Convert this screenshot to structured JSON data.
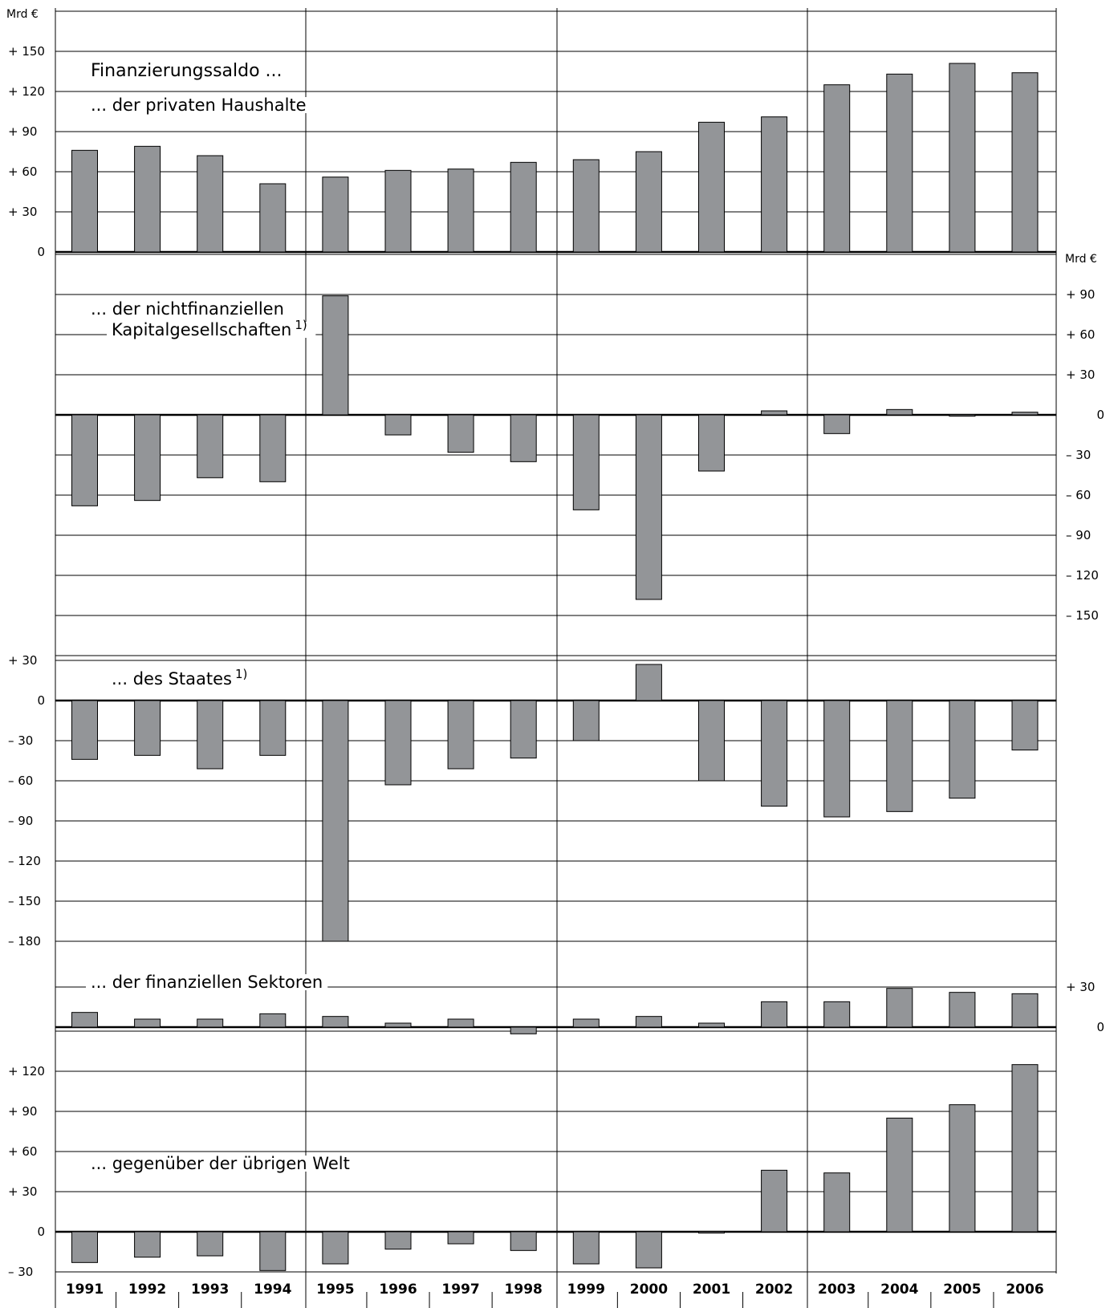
{
  "chart_data": {
    "type": "bar",
    "title": "Finanzierungssaldo ...",
    "categories": [
      "1991",
      "1992",
      "1993",
      "1994",
      "1995",
      "1996",
      "1997",
      "1998",
      "1999",
      "2000",
      "2001",
      "2002",
      "2003",
      "2004",
      "2005",
      "2006"
    ],
    "unit_left": "Mrd €",
    "unit_right": "Mrd €",
    "bar_color": "#939598",
    "grid": true,
    "panels": [
      {
        "id": "private",
        "label": "... der privaten Haushalte",
        "axis_side": "left",
        "ylim": [
          0,
          165
        ],
        "ticks": [
          {
            "value": 150,
            "label": "+ 150"
          },
          {
            "value": 120,
            "label": "+ 120"
          },
          {
            "value": 90,
            "label": "+  90"
          },
          {
            "value": 60,
            "label": "+  60"
          },
          {
            "value": 30,
            "label": "+  30"
          },
          {
            "value": 0,
            "label": "0"
          }
        ],
        "values": [
          76,
          79,
          72,
          51,
          56,
          61,
          62,
          67,
          69,
          75,
          97,
          101,
          125,
          133,
          141,
          134
        ]
      },
      {
        "id": "nonfin",
        "label": "... der nichtfinanziellen",
        "label2": "Kapitalgesellschaften",
        "footnote": "1)",
        "axis_side": "right",
        "ylim": [
          -150,
          120
        ],
        "ticks": [
          {
            "value": 90,
            "label": "+  90"
          },
          {
            "value": 60,
            "label": "+  60"
          },
          {
            "value": 30,
            "label": "+  30"
          },
          {
            "value": 0,
            "label": "0"
          },
          {
            "value": -30,
            "label": "–  30"
          },
          {
            "value": -60,
            "label": "–  60"
          },
          {
            "value": -90,
            "label": "–  90"
          },
          {
            "value": -120,
            "label": "– 120"
          },
          {
            "value": -150,
            "label": "– 150"
          }
        ],
        "values": [
          -68,
          -64,
          -47,
          -50,
          89,
          -15,
          -28,
          -35,
          -71,
          -138,
          -42,
          3,
          -14,
          4,
          -1,
          2
        ]
      },
      {
        "id": "state",
        "label": "... des Staates",
        "footnote": "1)",
        "axis_side": "left",
        "ylim": [
          -180,
          30
        ],
        "ticks": [
          {
            "value": 30,
            "label": "+  30"
          },
          {
            "value": 0,
            "label": "0"
          },
          {
            "value": -30,
            "label": "–  30"
          },
          {
            "value": -60,
            "label": "–  60"
          },
          {
            "value": -90,
            "label": "–  90"
          },
          {
            "value": -120,
            "label": "– 120"
          },
          {
            "value": -150,
            "label": "– 150"
          },
          {
            "value": -180,
            "label": "– 180"
          }
        ],
        "values": [
          -44,
          -41,
          -51,
          -41,
          -180,
          -63,
          -51,
          -43,
          -30,
          27,
          -60,
          -79,
          -87,
          -83,
          -73,
          -37
        ]
      },
      {
        "id": "financial",
        "label": "... der finanziellen Sektoren",
        "axis_side": "right",
        "ylim": [
          -10,
          30
        ],
        "ticks": [
          {
            "value": 30,
            "label": "+ 30"
          },
          {
            "value": 0,
            "label": "0"
          }
        ],
        "values": [
          11,
          6,
          6,
          10,
          8,
          3,
          6,
          -5,
          6,
          8,
          3,
          19,
          19,
          29,
          26,
          25
        ]
      },
      {
        "id": "rest_world",
        "label": "... gegenüber der übrigen Welt",
        "axis_side": "left",
        "ylim": [
          -45,
          150
        ],
        "ticks": [
          {
            "value": 120,
            "label": "+ 120"
          },
          {
            "value": 90,
            "label": "+  90"
          },
          {
            "value": 60,
            "label": "+  60"
          },
          {
            "value": 30,
            "label": "+  30"
          },
          {
            "value": 0,
            "label": "0"
          },
          {
            "value": -30,
            "label": "–  30"
          }
        ],
        "values": [
          -23,
          -19,
          -18,
          -29,
          -24,
          -13,
          -9,
          -14,
          -24,
          -27,
          -1,
          46,
          44,
          85,
          95,
          125
        ]
      }
    ]
  }
}
